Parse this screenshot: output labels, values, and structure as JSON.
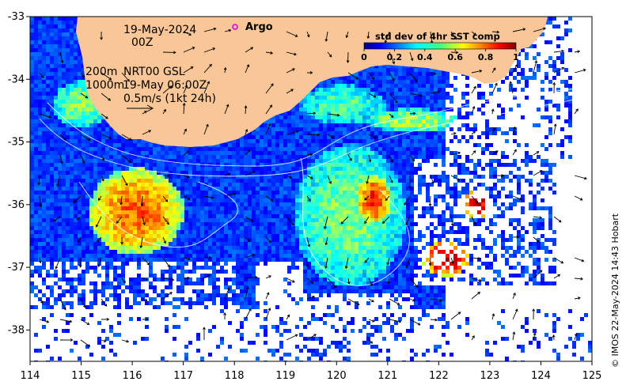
{
  "map": {
    "date_line": "19-May-2024",
    "time_line": "00Z",
    "depth_200": "200m",
    "depth_1000": "1000m",
    "product": "NRT00 GSL",
    "product_time": "19-May 06:00Z",
    "scale_label": "0.5m/s (1kt 24h)",
    "argo_label": "Argo",
    "credit": "© IMOS 22-May-2024 14:43 Hobart",
    "colorbar": {
      "title": "std dev of 4hr SST comp",
      "ticks": [
        "0",
        "0.2",
        "0.4",
        "0.6",
        "0.8",
        "1"
      ]
    },
    "x_ticks": [
      "114",
      "115",
      "116",
      "117",
      "118",
      "119",
      "120",
      "121",
      "122",
      "123",
      "124",
      "125"
    ],
    "y_ticks": [
      "-33",
      "-34",
      "-35",
      "-36",
      "-37",
      "-38"
    ],
    "xlim": [
      114,
      125
    ],
    "ylim": [
      -38.5,
      -33
    ],
    "colors": {
      "land": "#f9c797",
      "argo": "#e000e0",
      "background": "#ffffff"
    }
  }
}
